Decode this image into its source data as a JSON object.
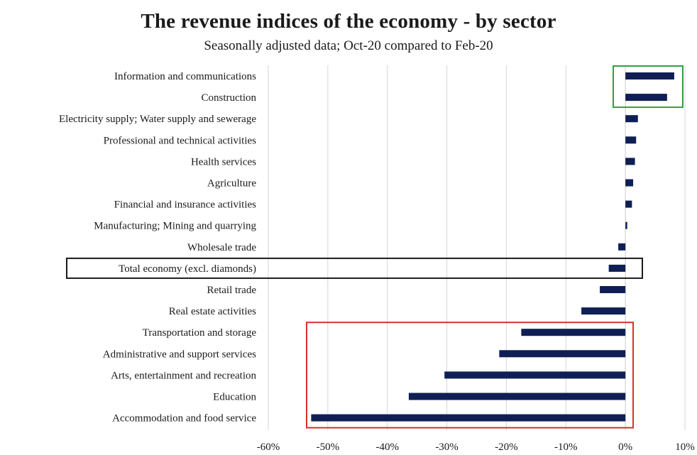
{
  "chart_data": {
    "type": "bar",
    "orientation": "horizontal",
    "title": "The revenue indices of the economy - by sector",
    "subtitle": "Seasonally adjusted data; Oct-20 compared to Feb-20",
    "xlabel": "",
    "ylabel": "",
    "xlim": [
      -60,
      10
    ],
    "xticks": [
      -60,
      -50,
      -40,
      -30,
      -20,
      -10,
      0,
      10
    ],
    "tick_labels": [
      "-60%",
      "-50%",
      "-40%",
      "-30%",
      "-20%",
      "-10%",
      "0%",
      "10%"
    ],
    "grid": "vertical",
    "bar_color": "#0f1f55",
    "categories": [
      "Information and communications",
      "Construction",
      "Electricity supply; Water supply and sewerage",
      "Professional and technical activities",
      "Health services",
      "Agriculture",
      "Financial and insurance activities",
      "Manufacturing; Mining and quarrying",
      "Wholesale trade",
      "Total economy (excl. diamonds)",
      "Retail trade",
      "Real estate activities",
      "Transportation and storage",
      "Administrative and support services",
      "Arts, entertainment and recreation",
      "Education",
      "Accommodation and food service"
    ],
    "values": [
      8.2,
      7.0,
      2.1,
      1.8,
      1.6,
      1.3,
      1.1,
      0.3,
      -1.2,
      -2.8,
      -4.3,
      -7.4,
      -17.5,
      -21.2,
      -30.4,
      -36.4,
      -52.8
    ],
    "highlights": [
      {
        "color": "#2ea043",
        "from": 0,
        "to": 1
      },
      {
        "color": "#1a1a1a",
        "from": 9,
        "to": 9
      },
      {
        "color": "#d9302c",
        "from": 12,
        "to": 16
      }
    ]
  }
}
